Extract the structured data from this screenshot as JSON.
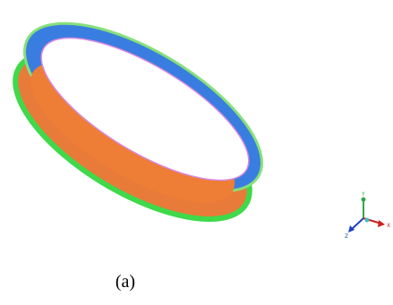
{
  "figure": {
    "caption": "(a)",
    "axes": {
      "y": "Y",
      "x": "X",
      "z": "Z"
    }
  }
}
